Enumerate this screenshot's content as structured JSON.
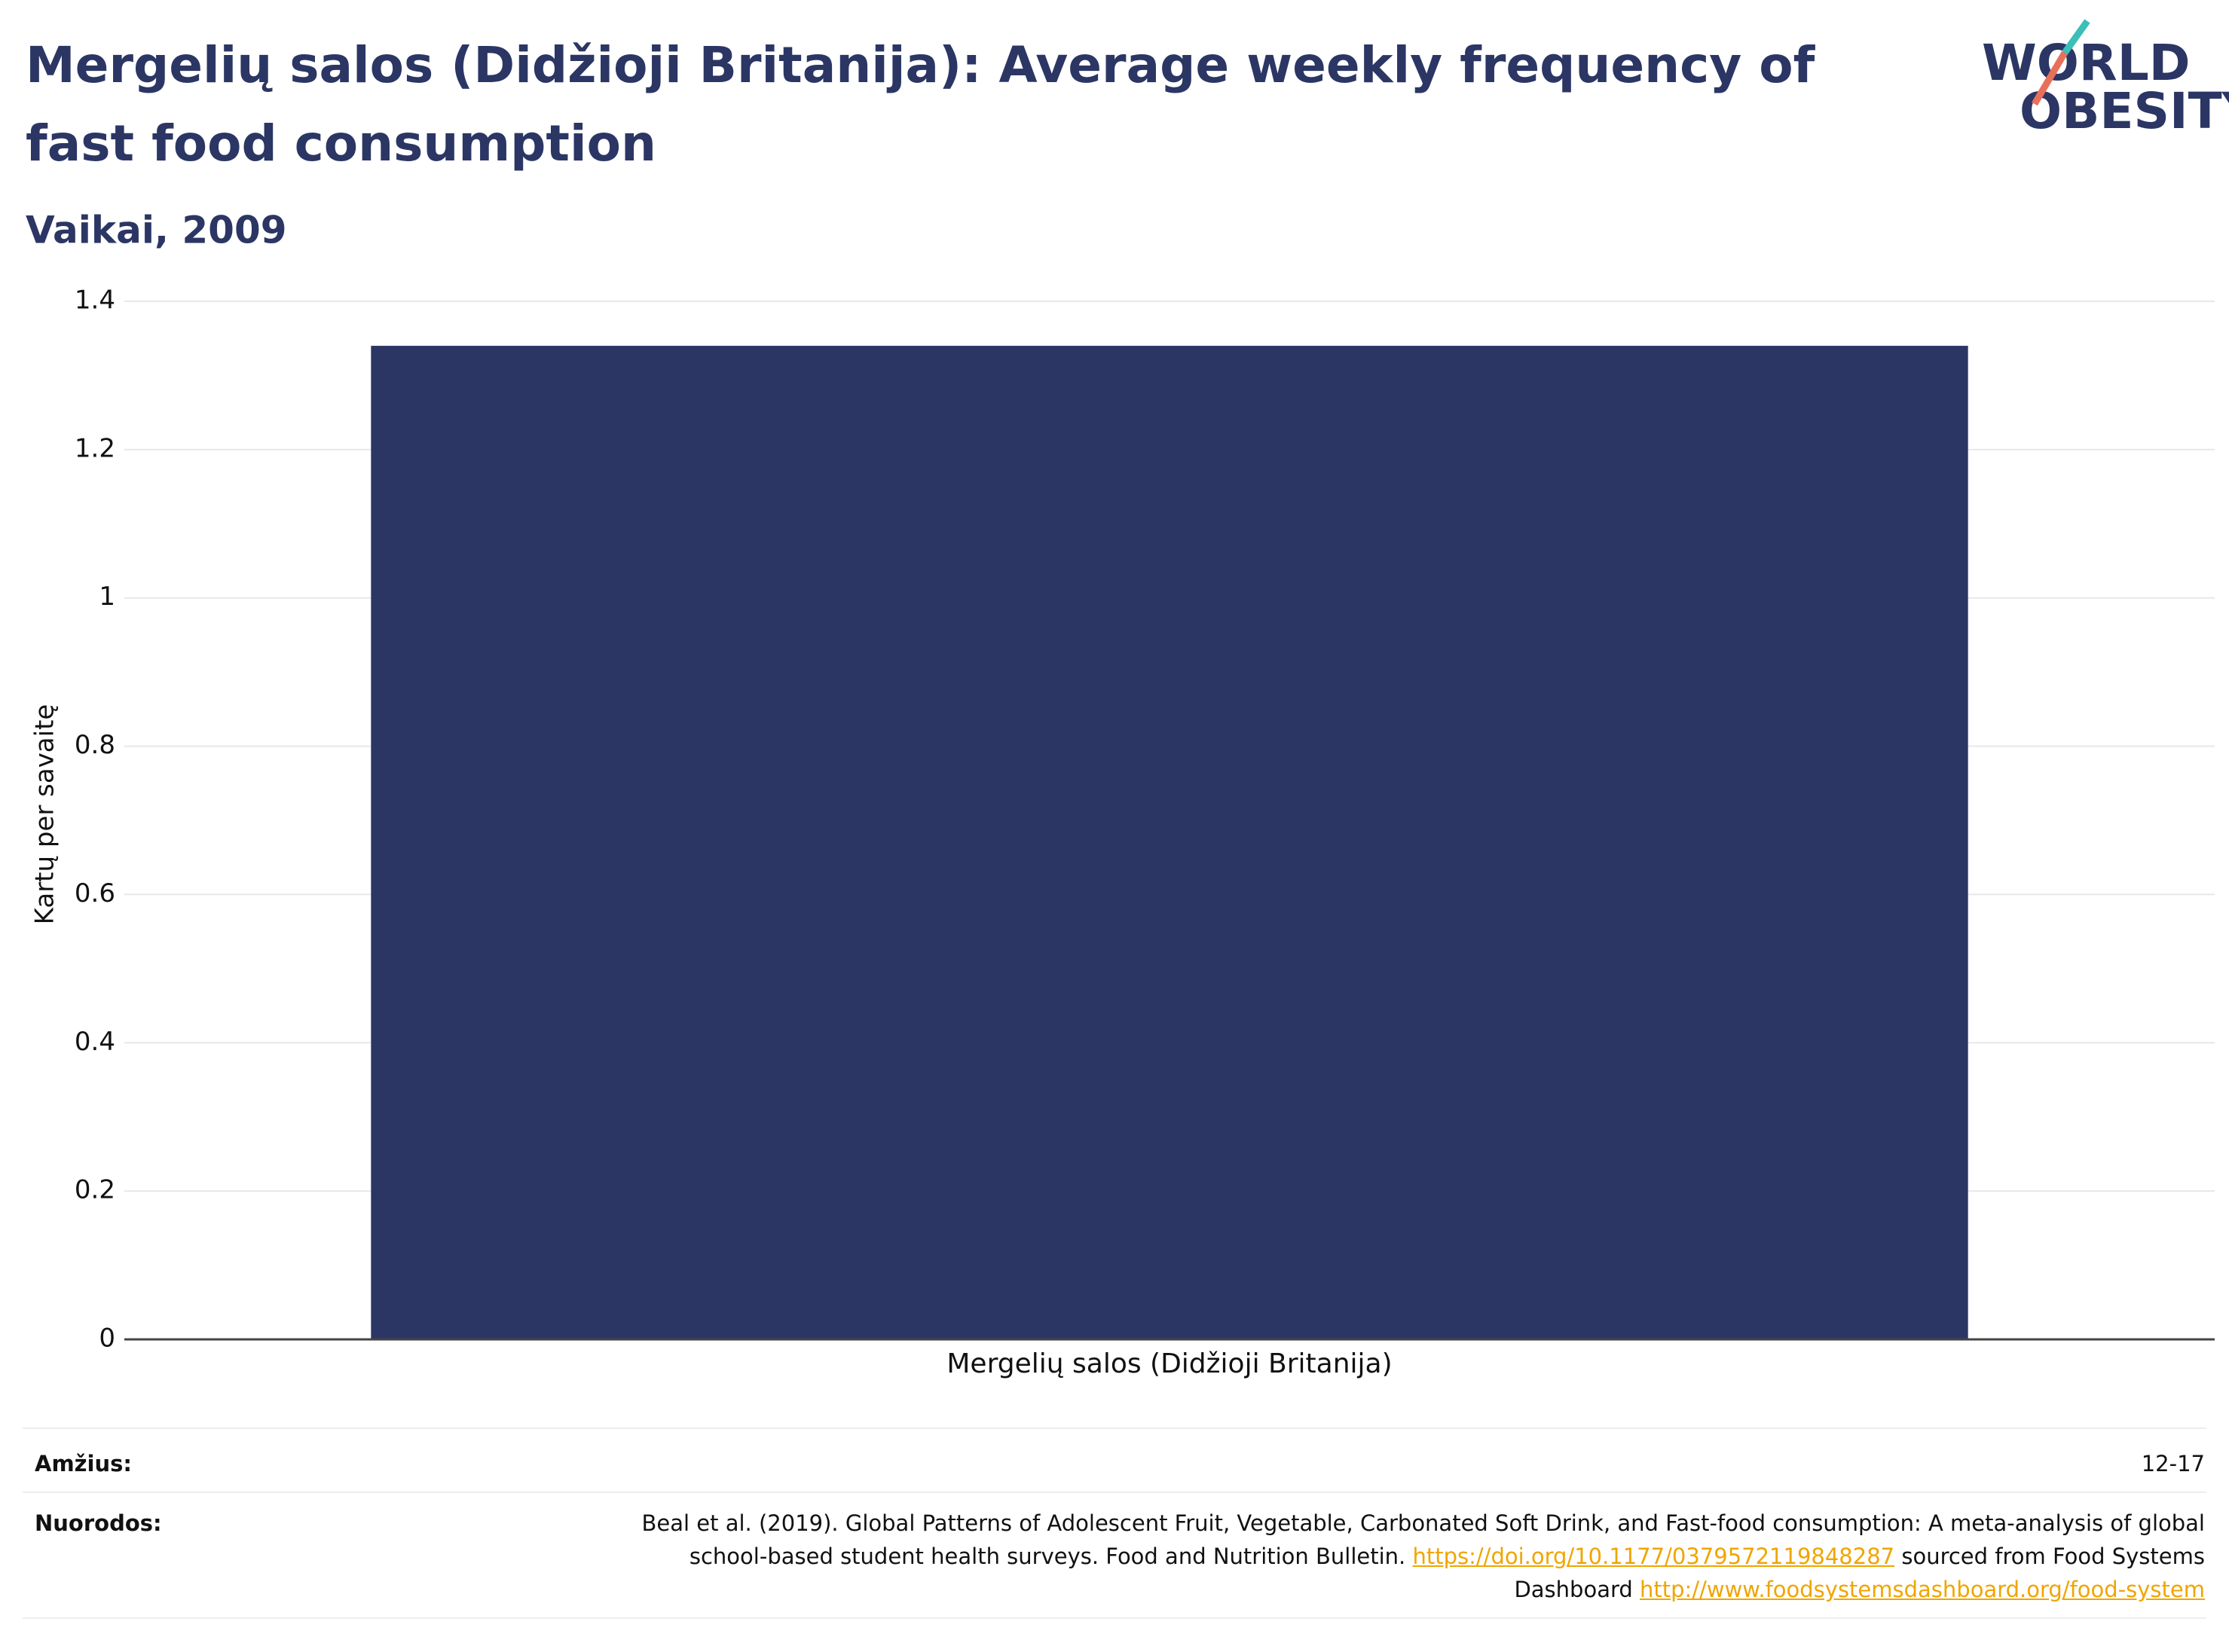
{
  "chart_data": {
    "type": "bar",
    "title": "Mergelių salos (Didžioji Britanija): Average weekly frequency of fast food consumption",
    "subtitle": "Vaikai, 2009",
    "y_label": "Kartų per savaitę",
    "categories": [
      "Mergelių salos (Didžioji Britanija)"
    ],
    "values": [
      1.34
    ],
    "color": "#2b3664",
    "ylim": [
      0,
      1.4
    ],
    "yticks": [
      0,
      0.2,
      0.4,
      0.6,
      0.8,
      1,
      1.2,
      1.4
    ],
    "grid": true
  },
  "logo": {
    "line1": "WORLD",
    "line2": "OBESITY"
  },
  "footer": {
    "age_label": "Amžius:",
    "age_value": "12-17",
    "refs_label": "Nuorodos:",
    "refs_text1": "Beal et al. (2019). Global Patterns of Adolescent Fruit, Vegetable, Carbonated Soft Drink, and Fast-food consumption: A meta-analysis of global school-based student health surveys. Food and Nutrition Bulletin.",
    "refs_link1": "https://doi.org/10.1177/0379572119848287",
    "refs_text2": "sourced from Food Systems Dashboard",
    "refs_link2": "http://www.foodsystemsdashboard.org/food-system"
  }
}
